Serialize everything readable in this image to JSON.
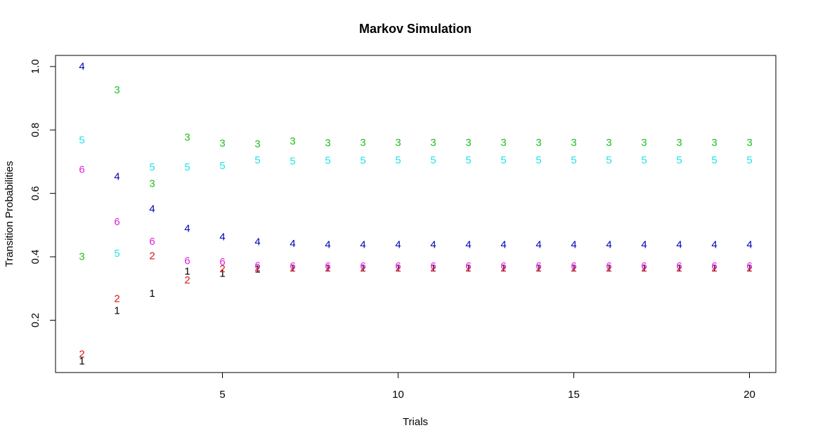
{
  "chart_data": {
    "type": "scatter",
    "title": "Markov Simulation",
    "xlabel": "Trials",
    "ylabel": "Transition Probabilities",
    "xlim": [
      0.25,
      20.75
    ],
    "ylim": [
      0.035,
      1.035
    ],
    "x_ticks": [
      5,
      10,
      15,
      20
    ],
    "x_tick_labels": [
      "5",
      "10",
      "15",
      "20"
    ],
    "y_ticks": [
      0.2,
      0.4,
      0.6,
      0.8,
      1.0
    ],
    "y_tick_labels": [
      "0.2",
      "0.4",
      "0.6",
      "0.8",
      "1.0"
    ],
    "grid": false,
    "x": [
      1,
      2,
      3,
      4,
      5,
      6,
      7,
      8,
      9,
      10,
      11,
      12,
      13,
      14,
      15,
      16,
      17,
      18,
      19,
      20
    ],
    "series": [
      {
        "marker": "1",
        "color": "#000000",
        "values": [
          0.07,
          0.23,
          0.284,
          0.354,
          0.347,
          0.36,
          0.363,
          0.364,
          0.364,
          0.364,
          0.364,
          0.364,
          0.364,
          0.364,
          0.364,
          0.364,
          0.364,
          0.364,
          0.364,
          0.364
        ]
      },
      {
        "marker": "2",
        "color": "#d7191c",
        "values": [
          0.093,
          0.267,
          0.402,
          0.326,
          0.361,
          0.365,
          0.364,
          0.364,
          0.364,
          0.364,
          0.364,
          0.364,
          0.364,
          0.364,
          0.364,
          0.364,
          0.364,
          0.364,
          0.364,
          0.364
        ]
      },
      {
        "marker": "3",
        "color": "#1fbf1f",
        "values": [
          0.4,
          0.926,
          0.63,
          0.776,
          0.757,
          0.755,
          0.764,
          0.758,
          0.76,
          0.76,
          0.76,
          0.76,
          0.76,
          0.76,
          0.76,
          0.76,
          0.76,
          0.76,
          0.76,
          0.76
        ]
      },
      {
        "marker": "4",
        "color": "#0000b4",
        "values": [
          1.0,
          0.652,
          0.55,
          0.488,
          0.462,
          0.447,
          0.441,
          0.438,
          0.438,
          0.438,
          0.438,
          0.438,
          0.438,
          0.438,
          0.438,
          0.438,
          0.438,
          0.438,
          0.438,
          0.438
        ]
      },
      {
        "marker": "5",
        "color": "#22e3e3",
        "values": [
          0.767,
          0.41,
          0.682,
          0.682,
          0.686,
          0.704,
          0.701,
          0.703,
          0.703,
          0.704,
          0.704,
          0.704,
          0.704,
          0.704,
          0.704,
          0.704,
          0.704,
          0.704,
          0.704,
          0.704
        ]
      },
      {
        "marker": "6",
        "color": "#e020e0",
        "values": [
          0.674,
          0.51,
          0.448,
          0.387,
          0.384,
          0.371,
          0.37,
          0.37,
          0.37,
          0.37,
          0.37,
          0.37,
          0.37,
          0.37,
          0.37,
          0.37,
          0.37,
          0.37,
          0.37,
          0.37
        ]
      }
    ]
  }
}
